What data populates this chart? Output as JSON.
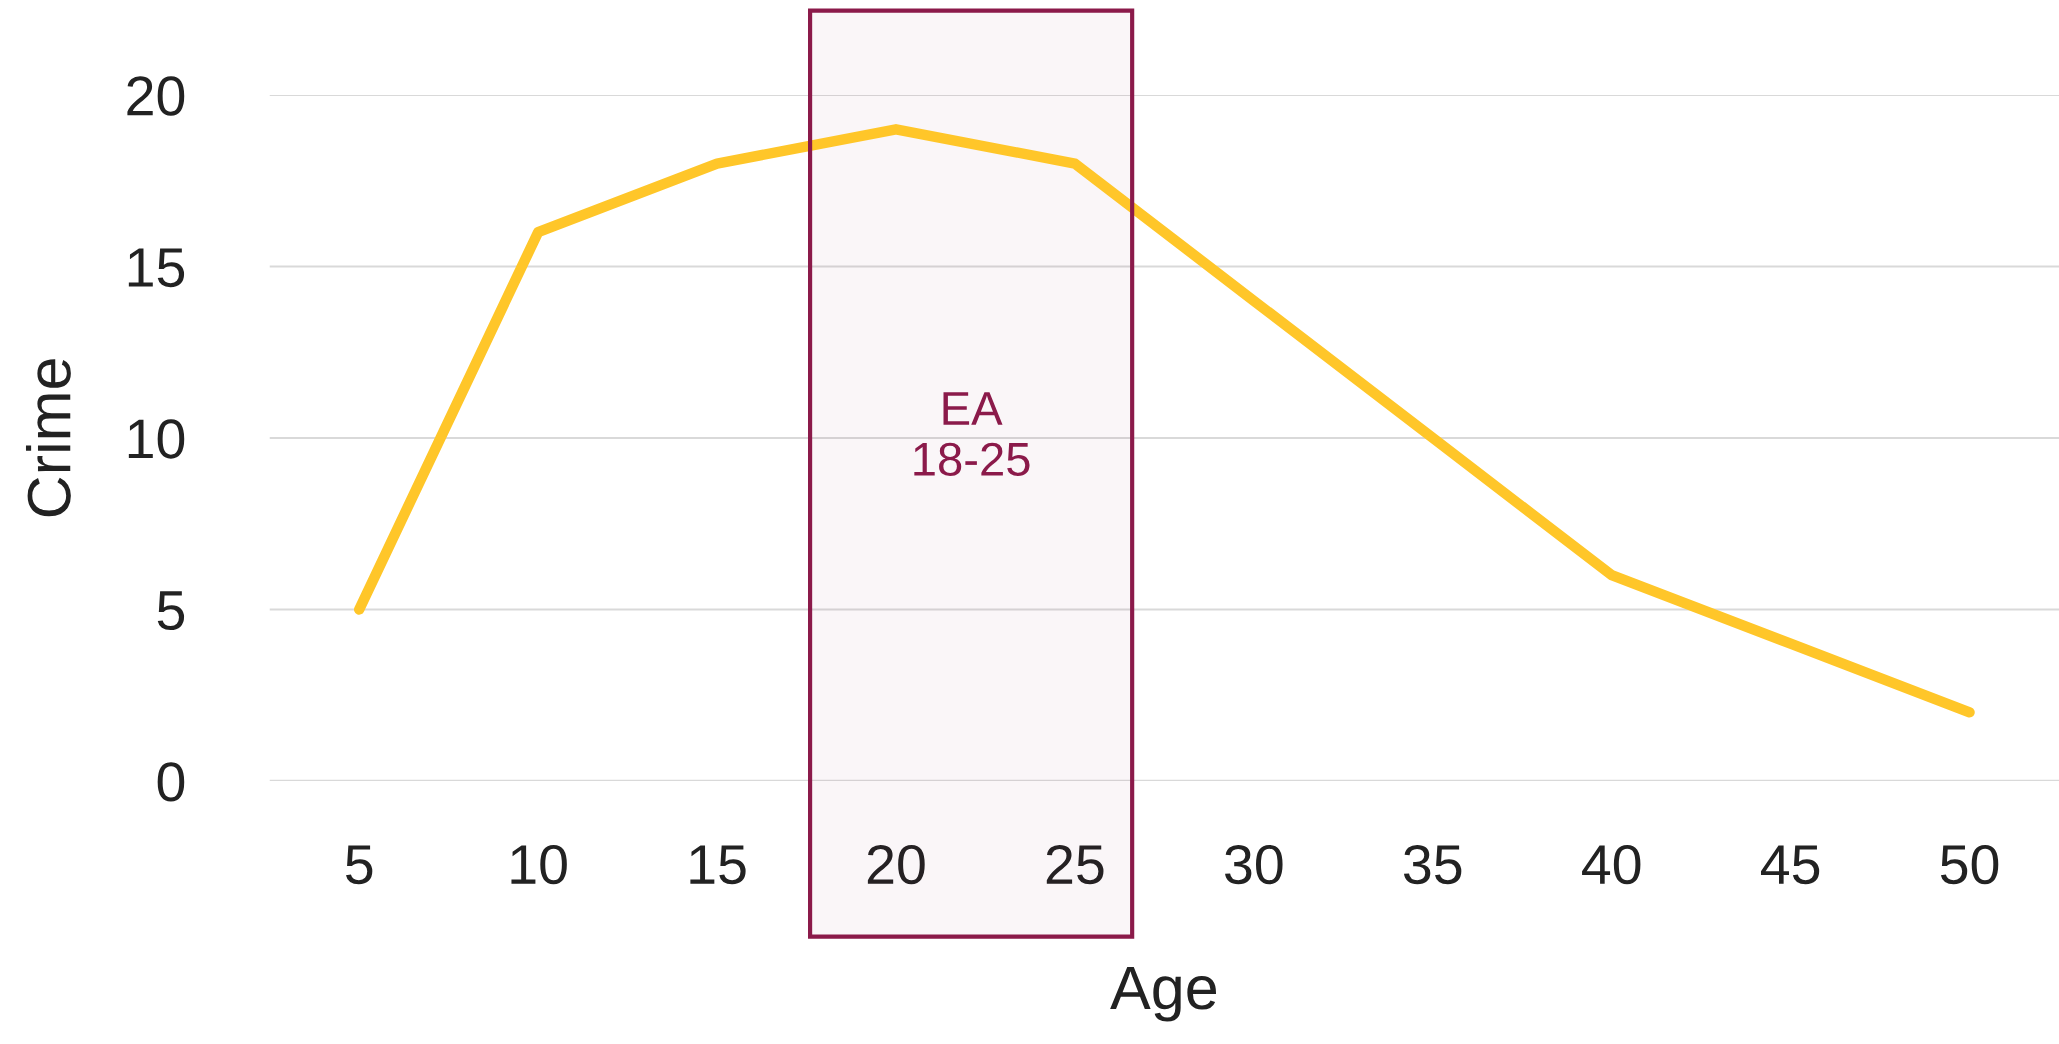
{
  "chart_data": {
    "type": "line",
    "xlabel": "Age",
    "ylabel": "Crime",
    "x": [
      5,
      10,
      15,
      20,
      25,
      30,
      35,
      40,
      45,
      50
    ],
    "series": [
      {
        "color": "#ffc629",
        "values": [
          5,
          16,
          18,
          19,
          18,
          14,
          10,
          6,
          4,
          2
        ]
      }
    ],
    "xlim": [
      2.5,
      52.5
    ],
    "xticks": [
      5,
      10,
      15,
      20,
      25,
      30,
      35,
      40,
      45,
      50
    ],
    "ylim": [
      0,
      20
    ],
    "yticks": [
      0,
      5,
      10,
      15,
      20
    ],
    "grid": "y",
    "marker": "none",
    "line_style": "solid",
    "bands": [
      {
        "axis": "x",
        "from": 17.6,
        "to": 26.6,
        "label": "EA\n18-25",
        "color": "#8b1a4a"
      }
    ]
  }
}
